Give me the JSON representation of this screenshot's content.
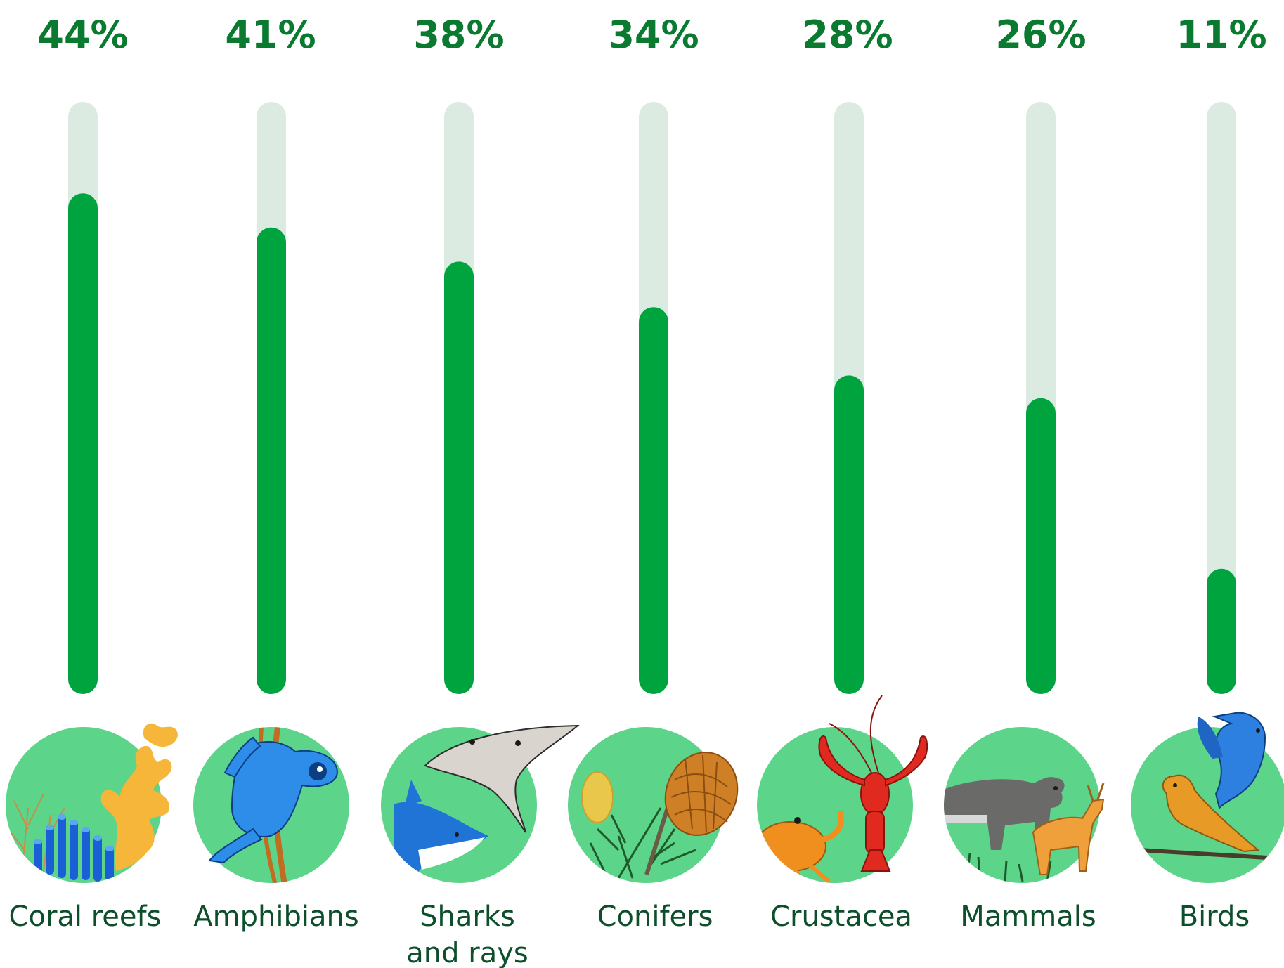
{
  "chart_data": {
    "type": "bar",
    "orientation": "vertical",
    "value_unit": "%",
    "ylim": [
      0,
      100
    ],
    "grid": false,
    "legend": "none",
    "categories": [
      "Coral reefs",
      "Amphibians",
      "Sharks and rays",
      "Conifers",
      "Crustacea",
      "Mammals",
      "Birds"
    ],
    "category_lines": [
      [
        "Coral reefs"
      ],
      [
        "Amphibians"
      ],
      [
        "Sharks",
        "and rays"
      ],
      [
        "Conifers"
      ],
      [
        "Crustacea"
      ],
      [
        "Mammals"
      ],
      [
        "Birds"
      ]
    ],
    "values": [
      44,
      41,
      38,
      34,
      28,
      26,
      11
    ],
    "value_labels": [
      "44%",
      "41%",
      "38%",
      "34%",
      "28%",
      "26%",
      "11%"
    ],
    "icons": [
      "coral-reef-icon",
      "frog-icon",
      "shark-and-ray-icon",
      "pine-cone-icon",
      "lobster-and-crab-icon",
      "bear-and-deer-icon",
      "birds-icon"
    ]
  },
  "colors": {
    "bar_fill": "#00a43f",
    "bar_track": "#dcebe2",
    "label_green": "#0a7a30",
    "text_dark": "#0d4f2b",
    "icon_circle": "#5cd48a"
  }
}
